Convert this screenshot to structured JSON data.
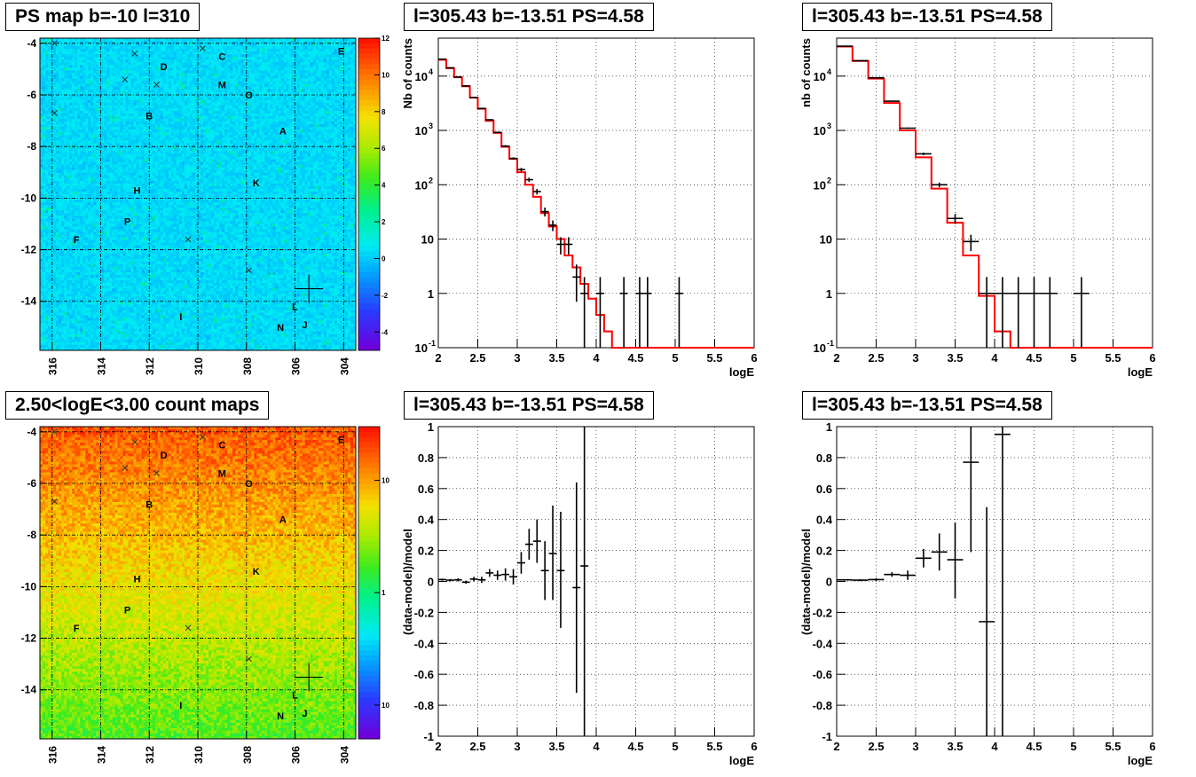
{
  "chart_data": [
    {
      "type": "heatmap",
      "title": "PS map b=-10 l=310",
      "x_ticks": [
        "316",
        "314",
        "312",
        "310",
        "308",
        "306",
        "304"
      ],
      "y_ticks": [
        "-4",
        "-6",
        "-8",
        "-10",
        "-12",
        "-14"
      ],
      "xlim": [
        316.5,
        303.5
      ],
      "ylim": [
        -15.9,
        -3.8
      ],
      "colorbar": {
        "scale": "linear",
        "range": [
          -5,
          12
        ],
        "ticks": [
          "12",
          "10",
          "8",
          "6",
          "4",
          "2",
          "0",
          "-2",
          "-4"
        ]
      },
      "source_labels": [
        {
          "text": "E",
          "l": 304.1,
          "b": -4.3
        },
        {
          "text": "C",
          "l": 309.0,
          "b": -4.5
        },
        {
          "text": "D",
          "l": 311.4,
          "b": -4.9
        },
        {
          "text": "M",
          "l": 309.0,
          "b": -5.6
        },
        {
          "text": "O",
          "l": 307.9,
          "b": -6.0
        },
        {
          "text": "B",
          "l": 312.0,
          "b": -6.8
        },
        {
          "text": "A",
          "l": 306.5,
          "b": -7.4
        },
        {
          "text": "K",
          "l": 307.6,
          "b": -9.4
        },
        {
          "text": "H",
          "l": 312.5,
          "b": -9.7
        },
        {
          "text": "P",
          "l": 312.9,
          "b": -10.9
        },
        {
          "text": "F",
          "l": 315.0,
          "b": -11.6
        },
        {
          "text": "L",
          "l": 306.0,
          "b": -14.2
        },
        {
          "text": "I",
          "l": 310.7,
          "b": -14.6
        },
        {
          "text": "N",
          "l": 306.6,
          "b": -15.0
        },
        {
          "text": "J",
          "l": 305.6,
          "b": -14.9
        }
      ],
      "x_markers": [
        {
          "l": 315.9,
          "b": -4.0
        },
        {
          "l": 312.6,
          "b": -4.4
        },
        {
          "l": 309.8,
          "b": -4.2
        },
        {
          "l": 313.0,
          "b": -5.4
        },
        {
          "l": 311.7,
          "b": -5.6
        },
        {
          "l": 315.9,
          "b": -6.7
        },
        {
          "l": 310.4,
          "b": -11.6
        },
        {
          "l": 307.9,
          "b": -12.8
        }
      ],
      "cross": {
        "l": 305.43,
        "b": -13.51
      }
    },
    {
      "type": "line",
      "title": "l=305.43 b=-13.51 PS=4.58",
      "xlabel": "logE",
      "ylabel": "Nb of counts",
      "xlim": [
        2,
        6
      ],
      "ylim": [
        0.1,
        50000
      ],
      "yscale": "log",
      "grid": true,
      "x_ticks": [
        "2",
        "2.5",
        "3",
        "3.5",
        "4",
        "4.5",
        "5",
        "5.5",
        "6"
      ],
      "y_ticks": [
        {
          "v": 0.1,
          "t": "10"
        },
        {
          "v": 1,
          "t": "1"
        },
        {
          "v": 10,
          "t": "10"
        },
        {
          "v": 100,
          "t": "10"
        },
        {
          "v": 1000,
          "t": "10"
        },
        {
          "v": 10000,
          "t": "10"
        }
      ],
      "series": [
        {
          "kind": "model_step",
          "color": "#ff0000",
          "bin_width": 0.1,
          "x": [
            2,
            2.1,
            2.2,
            2.3,
            2.4,
            2.5,
            2.6,
            2.7,
            2.8,
            2.9,
            3.0,
            3.1,
            3.2,
            3.3,
            3.4,
            3.5,
            3.6,
            3.7,
            3.8,
            3.9,
            4.0,
            4.1,
            4.2,
            4.3
          ],
          "y": [
            20000,
            14000,
            9500,
            6500,
            4000,
            2500,
            1500,
            900,
            500,
            300,
            170,
            100,
            60,
            30,
            17,
            10,
            5,
            3,
            1.5,
            0.8,
            0.4,
            0.2,
            0.1,
            0.1
          ]
        },
        {
          "kind": "data_points",
          "color": "#000000",
          "xerr": 0.05,
          "points": [
            {
              "x": 2.05,
              "y": 20500,
              "lo": 20200,
              "hi": 20800
            },
            {
              "x": 2.15,
              "y": 14200,
              "lo": 14000,
              "hi": 14400
            },
            {
              "x": 2.25,
              "y": 9600,
              "lo": 9400,
              "hi": 9800
            },
            {
              "x": 2.35,
              "y": 6600,
              "lo": 6500,
              "hi": 6700
            },
            {
              "x": 2.45,
              "y": 4050,
              "lo": 3990,
              "hi": 4110
            },
            {
              "x": 2.55,
              "y": 2540,
              "lo": 2490,
              "hi": 2590
            },
            {
              "x": 2.65,
              "y": 1570,
              "lo": 1530,
              "hi": 1610
            },
            {
              "x": 2.75,
              "y": 920,
              "lo": 890,
              "hi": 950
            },
            {
              "x": 2.85,
              "y": 515,
              "lo": 495,
              "hi": 535
            },
            {
              "x": 2.95,
              "y": 305,
              "lo": 290,
              "hi": 320
            },
            {
              "x": 3.05,
              "y": 190,
              "lo": 176,
              "hi": 204
            },
            {
              "x": 3.15,
              "y": 124,
              "lo": 113,
              "hi": 135
            },
            {
              "x": 3.25,
              "y": 75,
              "lo": 66,
              "hi": 84
            },
            {
              "x": 3.35,
              "y": 32,
              "lo": 26,
              "hi": 38
            },
            {
              "x": 3.45,
              "y": 18,
              "lo": 14,
              "hi": 22
            },
            {
              "x": 3.55,
              "y": 8,
              "lo": 5.2,
              "hi": 10.8
            },
            {
              "x": 3.65,
              "y": 8,
              "lo": 5.2,
              "hi": 10.8
            },
            {
              "x": 3.75,
              "y": 2,
              "lo": 0.7,
              "hi": 3.4
            },
            {
              "x": 3.85,
              "y": 1,
              "lo": 0.1,
              "hi": 2
            },
            {
              "x": 4.05,
              "y": 1,
              "lo": 0.1,
              "hi": 2
            },
            {
              "x": 4.35,
              "y": 1,
              "lo": 0.1,
              "hi": 2
            },
            {
              "x": 4.55,
              "y": 1,
              "lo": 0.1,
              "hi": 2
            },
            {
              "x": 4.65,
              "y": 1,
              "lo": 0.1,
              "hi": 2
            },
            {
              "x": 5.05,
              "y": 1,
              "lo": 0.1,
              "hi": 2
            }
          ]
        }
      ]
    },
    {
      "type": "line",
      "title": "l=305.43 b=-13.51 PS=4.58",
      "xlabel": "logE",
      "ylabel": "nb of counts",
      "xlim": [
        2,
        6
      ],
      "ylim": [
        0.1,
        50000
      ],
      "yscale": "log",
      "grid": true,
      "x_ticks": [
        "2",
        "2.5",
        "3",
        "3.5",
        "4",
        "4.5",
        "5",
        "5.5",
        "6"
      ],
      "y_ticks": [
        {
          "v": 0.1,
          "t": "10"
        },
        {
          "v": 1,
          "t": "1"
        },
        {
          "v": 10,
          "t": "10"
        },
        {
          "v": 100,
          "t": "10"
        },
        {
          "v": 1000,
          "t": "10"
        },
        {
          "v": 10000,
          "t": "10"
        }
      ],
      "series": [
        {
          "kind": "model_step",
          "color": "#ff0000",
          "bin_width": 0.2,
          "x": [
            2,
            2.2,
            2.4,
            2.6,
            2.8,
            3.0,
            3.2,
            3.4,
            3.6,
            3.8,
            4.0,
            4.2,
            4.4
          ],
          "y": [
            35000,
            19000,
            9000,
            3200,
            1000,
            320,
            85,
            20,
            5,
            0.9,
            0.2,
            0.1,
            0.1
          ]
        },
        {
          "kind": "data_points",
          "color": "#000000",
          "xerr": 0.1,
          "points": [
            {
              "x": 2.1,
              "y": 35500,
              "lo": 35300,
              "hi": 35700
            },
            {
              "x": 2.3,
              "y": 19200,
              "lo": 19000,
              "hi": 19400
            },
            {
              "x": 2.5,
              "y": 9300,
              "lo": 9200,
              "hi": 9400
            },
            {
              "x": 2.7,
              "y": 3450,
              "lo": 3390,
              "hi": 3510
            },
            {
              "x": 2.9,
              "y": 1100,
              "lo": 1070,
              "hi": 1130
            },
            {
              "x": 3.1,
              "y": 370,
              "lo": 350,
              "hi": 390
            },
            {
              "x": 3.3,
              "y": 100,
              "lo": 90,
              "hi": 110
            },
            {
              "x": 3.5,
              "y": 24,
              "lo": 19,
              "hi": 29
            },
            {
              "x": 3.7,
              "y": 9,
              "lo": 6,
              "hi": 12
            },
            {
              "x": 3.9,
              "y": 1,
              "lo": 0.1,
              "hi": 2
            },
            {
              "x": 4.1,
              "y": 1,
              "lo": 0.1,
              "hi": 2
            },
            {
              "x": 4.3,
              "y": 1,
              "lo": 0.1,
              "hi": 2
            },
            {
              "x": 4.5,
              "y": 1,
              "lo": 0.1,
              "hi": 2
            },
            {
              "x": 4.7,
              "y": 1,
              "lo": 0.1,
              "hi": 2
            },
            {
              "x": 5.1,
              "y": 1,
              "lo": 0.1,
              "hi": 2
            }
          ]
        }
      ]
    },
    {
      "type": "heatmap",
      "title": "2.50<logE<3.00 count maps",
      "x_ticks": [
        "316",
        "314",
        "312",
        "310",
        "308",
        "306",
        "304"
      ],
      "y_ticks": [
        "-4",
        "-6",
        "-8",
        "-10",
        "-12",
        "-14"
      ],
      "xlim": [
        316.5,
        303.5
      ],
      "ylim": [
        -15.9,
        -3.8
      ],
      "colorbar": {
        "scale": "log",
        "range": [
          0.05,
          30
        ],
        "ticks": [
          {
            "v": 10,
            "t": "10"
          },
          {
            "v": 1,
            "t": "1"
          },
          {
            "v": 0.1,
            "t": "10"
          }
        ]
      },
      "source_labels": [
        {
          "text": "E",
          "l": 304.1,
          "b": -4.3
        },
        {
          "text": "C",
          "l": 309.0,
          "b": -4.5
        },
        {
          "text": "D",
          "l": 311.4,
          "b": -4.9
        },
        {
          "text": "M",
          "l": 309.0,
          "b": -5.6
        },
        {
          "text": "O",
          "l": 307.9,
          "b": -6.0
        },
        {
          "text": "B",
          "l": 312.0,
          "b": -6.8
        },
        {
          "text": "A",
          "l": 306.5,
          "b": -7.4
        },
        {
          "text": "K",
          "l": 307.6,
          "b": -9.4
        },
        {
          "text": "H",
          "l": 312.5,
          "b": -9.7
        },
        {
          "text": "P",
          "l": 312.9,
          "b": -10.9
        },
        {
          "text": "F",
          "l": 315.0,
          "b": -11.6
        },
        {
          "text": "L",
          "l": 306.0,
          "b": -14.2
        },
        {
          "text": "I",
          "l": 310.7,
          "b": -14.6
        },
        {
          "text": "N",
          "l": 306.6,
          "b": -15.0
        },
        {
          "text": "J",
          "l": 305.6,
          "b": -14.9
        }
      ],
      "x_markers": [
        {
          "l": 315.9,
          "b": -4.0
        },
        {
          "l": 312.6,
          "b": -4.4
        },
        {
          "l": 309.8,
          "b": -4.2
        },
        {
          "l": 313.0,
          "b": -5.4
        },
        {
          "l": 311.7,
          "b": -5.6
        },
        {
          "l": 315.9,
          "b": -6.7
        },
        {
          "l": 310.4,
          "b": -11.6
        },
        {
          "l": 307.9,
          "b": -12.8
        }
      ],
      "cross": {
        "l": 305.43,
        "b": -13.51
      }
    },
    {
      "type": "scatter",
      "title": "l=305.43 b=-13.51 PS=4.58",
      "xlabel": "logE",
      "ylabel": "(data-model)/model",
      "xlim": [
        2,
        6
      ],
      "ylim": [
        -1,
        1
      ],
      "grid": true,
      "x_ticks": [
        "2",
        "2.5",
        "3",
        "3.5",
        "4",
        "4.5",
        "5",
        "5.5",
        "6"
      ],
      "y_ticks": [
        "1",
        "0.8",
        "0.6",
        "0.4",
        "0.2",
        "0",
        "-0.2",
        "-0.4",
        "-0.6",
        "-0.8",
        "-1"
      ],
      "series": [
        {
          "kind": "residuals",
          "color": "#000000",
          "xerr": 0.05,
          "points": [
            {
              "x": 2.05,
              "y": 0.012,
              "lo": 0.005,
              "hi": 0.018
            },
            {
              "x": 2.15,
              "y": 0.008,
              "lo": 0.0,
              "hi": 0.016
            },
            {
              "x": 2.25,
              "y": 0.01,
              "lo": 0.0,
              "hi": 0.02
            },
            {
              "x": 2.35,
              "y": -0.005,
              "lo": -0.015,
              "hi": 0.005
            },
            {
              "x": 2.45,
              "y": 0.015,
              "lo": 0.0,
              "hi": 0.03
            },
            {
              "x": 2.55,
              "y": 0.01,
              "lo": -0.01,
              "hi": 0.03
            },
            {
              "x": 2.65,
              "y": 0.055,
              "lo": 0.03,
              "hi": 0.08
            },
            {
              "x": 2.75,
              "y": 0.04,
              "lo": 0.01,
              "hi": 0.07
            },
            {
              "x": 2.85,
              "y": 0.045,
              "lo": 0.005,
              "hi": 0.085
            },
            {
              "x": 2.95,
              "y": 0.03,
              "lo": -0.02,
              "hi": 0.08
            },
            {
              "x": 3.05,
              "y": 0.12,
              "lo": 0.05,
              "hi": 0.19
            },
            {
              "x": 3.15,
              "y": 0.24,
              "lo": 0.14,
              "hi": 0.34
            },
            {
              "x": 3.25,
              "y": 0.26,
              "lo": 0.12,
              "hi": 0.4
            },
            {
              "x": 3.35,
              "y": 0.07,
              "lo": -0.12,
              "hi": 0.26
            },
            {
              "x": 3.45,
              "y": 0.18,
              "lo": -0.12,
              "hi": 0.49
            },
            {
              "x": 3.55,
              "y": 0.07,
              "lo": -0.3,
              "hi": 0.45
            },
            {
              "x": 3.75,
              "y": -0.04,
              "lo": -0.72,
              "hi": 0.64
            },
            {
              "x": 3.85,
              "y": 0.1,
              "lo": -1.0,
              "hi": 1.0
            }
          ]
        }
      ]
    },
    {
      "type": "scatter",
      "title": "l=305.43 b=-13.51 PS=4.58",
      "xlabel": "logE",
      "ylabel": "(data-model)/model",
      "xlim": [
        2,
        6
      ],
      "ylim": [
        -1,
        1
      ],
      "grid": true,
      "x_ticks": [
        "2",
        "2.5",
        "3",
        "3.5",
        "4",
        "4.5",
        "5",
        "5.5",
        "6"
      ],
      "y_ticks": [
        "1",
        "0.8",
        "0.6",
        "0.4",
        "0.2",
        "0",
        "-0.2",
        "-0.4",
        "-0.6",
        "-0.8",
        "-1"
      ],
      "series": [
        {
          "kind": "residuals",
          "color": "#000000",
          "xerr": 0.1,
          "points": [
            {
              "x": 2.1,
              "y": 0.01,
              "lo": 0.005,
              "hi": 0.015
            },
            {
              "x": 2.3,
              "y": 0.008,
              "lo": 0.002,
              "hi": 0.014
            },
            {
              "x": 2.5,
              "y": 0.012,
              "lo": 0.002,
              "hi": 0.022
            },
            {
              "x": 2.7,
              "y": 0.045,
              "lo": 0.03,
              "hi": 0.06
            },
            {
              "x": 2.9,
              "y": 0.04,
              "lo": 0.01,
              "hi": 0.07
            },
            {
              "x": 3.1,
              "y": 0.15,
              "lo": 0.09,
              "hi": 0.21
            },
            {
              "x": 3.3,
              "y": 0.19,
              "lo": 0.07,
              "hi": 0.31
            },
            {
              "x": 3.5,
              "y": 0.14,
              "lo": -0.11,
              "hi": 0.38
            },
            {
              "x": 3.7,
              "y": 0.77,
              "lo": 0.19,
              "hi": 1.0
            },
            {
              "x": 3.9,
              "y": -0.26,
              "lo": -1.0,
              "hi": 0.48
            },
            {
              "x": 4.1,
              "y": 0.95,
              "lo": -1.0,
              "hi": 1.0
            }
          ]
        }
      ]
    }
  ]
}
